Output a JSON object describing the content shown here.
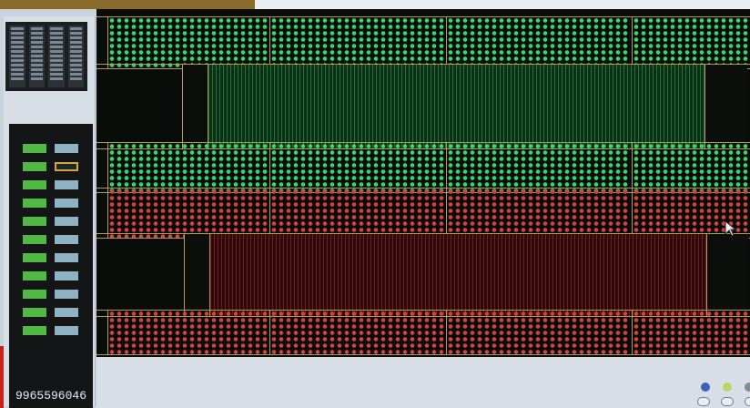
{
  "left_panel": {
    "meter": {
      "rows": 12,
      "selected_row": 2
    },
    "counter_text": "9965596046"
  },
  "legend": {
    "dot_colors": [
      "#3d63b8",
      "#b6d66a",
      "#7f8b96"
    ]
  }
}
